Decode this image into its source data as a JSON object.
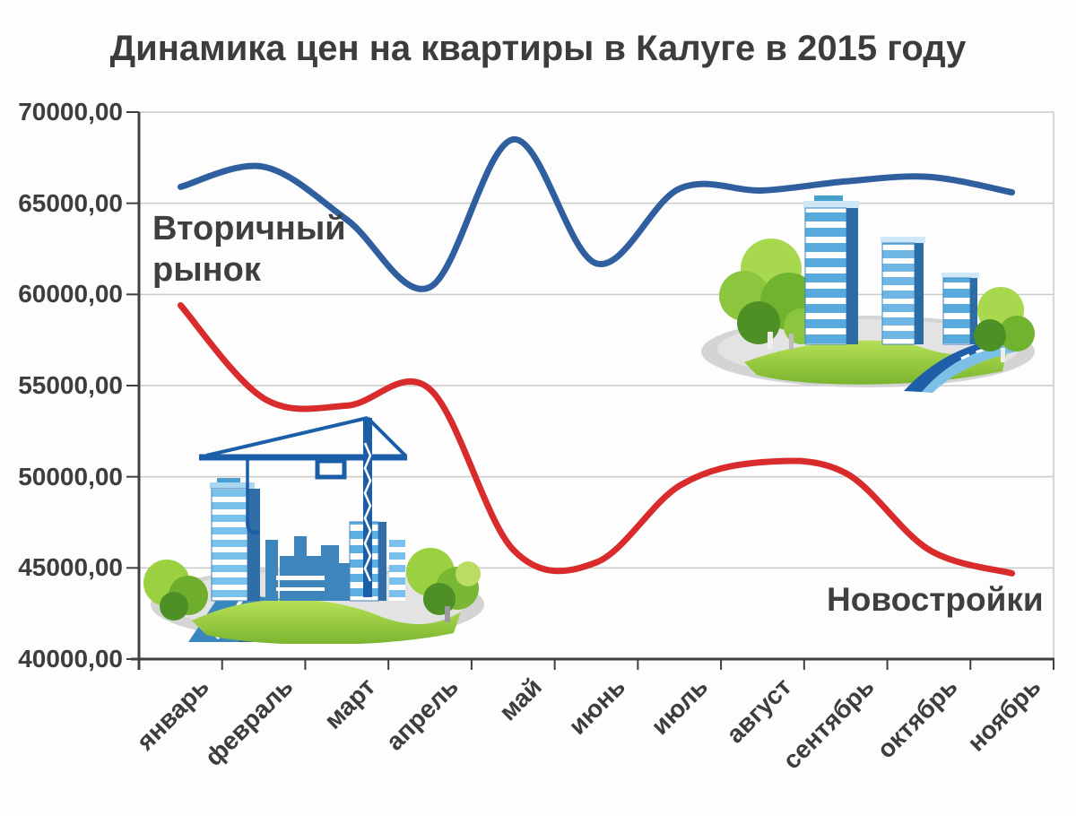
{
  "title": "Динамика цен на квартиры в Калуге в 2015 году",
  "series_labels": {
    "secondary_market": "Вторичный\nрынок",
    "new_buildings": "Новостройки"
  },
  "illustrations": {
    "left": "construction-site-clipart",
    "right": "city-buildings-clipart"
  },
  "colors": {
    "secondary_market_line": "#2f5f9e",
    "new_buildings_line": "#d92b2b",
    "axis": "#3f3f3f",
    "grid": "#c9c9c9",
    "text": "#3d3d3d"
  },
  "chart_data": {
    "type": "line",
    "title": "Динамика цен на квартиры в Калуге в 2015 году",
    "categories": [
      "январь",
      "февраль",
      "март",
      "апрель",
      "май",
      "июнь",
      "июль",
      "август",
      "сентябрь",
      "октябрь",
      "ноябрь"
    ],
    "series": [
      {
        "name": "Вторичный рынок",
        "color": "#2f5f9e",
        "values": [
          65900,
          67000,
          64100,
          60400,
          68500,
          61700,
          65800,
          65700,
          66200,
          66450,
          65600
        ]
      },
      {
        "name": "Новостройки",
        "color": "#d92b2b",
        "values": [
          59400,
          54300,
          53900,
          54800,
          46000,
          45300,
          49500,
          50800,
          50200,
          46000,
          44700
        ]
      }
    ],
    "xlabel": "",
    "ylabel": "",
    "ylim": [
      40000,
      70000
    ],
    "ytick_step": 5000,
    "ytick_labels": [
      "70000,00",
      "65000,00",
      "60000,00",
      "55000,00",
      "50000,00",
      "45000,00",
      "40000,00"
    ],
    "grid": true,
    "smooth": true,
    "x_label_rotation_deg": 45,
    "legend_position": "inline-labels"
  }
}
